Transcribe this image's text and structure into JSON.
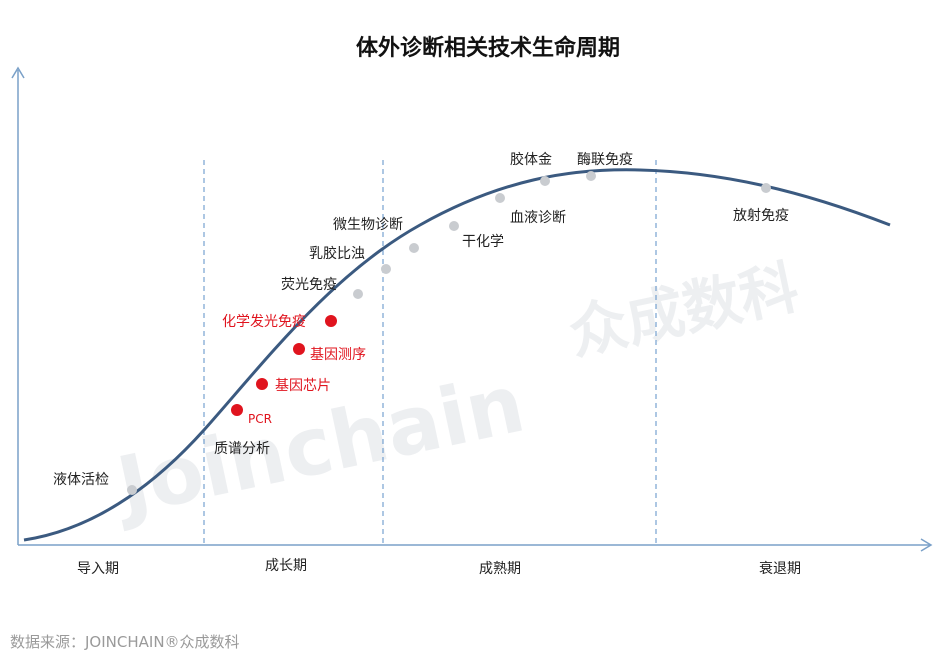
{
  "title": "体外诊断相关技术生命周期",
  "phases": [
    "导入期",
    "成长期",
    "成熟期",
    "衰退期"
  ],
  "technologies": [
    {
      "label": "液体活检",
      "highlight": false
    },
    {
      "label": "质谱分析",
      "highlight": false
    },
    {
      "label": "PCR",
      "highlight": true
    },
    {
      "label": "基因芯片",
      "highlight": true
    },
    {
      "label": "基因测序",
      "highlight": true
    },
    {
      "label": "化学发光免疫",
      "highlight": true
    },
    {
      "label": "荧光免疫",
      "highlight": false
    },
    {
      "label": "乳胶比浊",
      "highlight": false
    },
    {
      "label": "微生物诊断",
      "highlight": false
    },
    {
      "label": "干化学",
      "highlight": false
    },
    {
      "label": "血液诊断",
      "highlight": false
    },
    {
      "label": "胶体金",
      "highlight": false
    },
    {
      "label": "酶联免疫",
      "highlight": false
    },
    {
      "label": "放射免疫",
      "highlight": false
    }
  ],
  "watermark": {
    "latin": "Joinchain",
    "chinese": "众成数科"
  },
  "source": "数据来源：JOINCHAIN®众成数科",
  "colors": {
    "curve": "#3b5a80",
    "axis": "#7aa0c8",
    "highlight": "#e0141e",
    "dot": "#c9ccd0",
    "divider": "#5b8fc7"
  }
}
